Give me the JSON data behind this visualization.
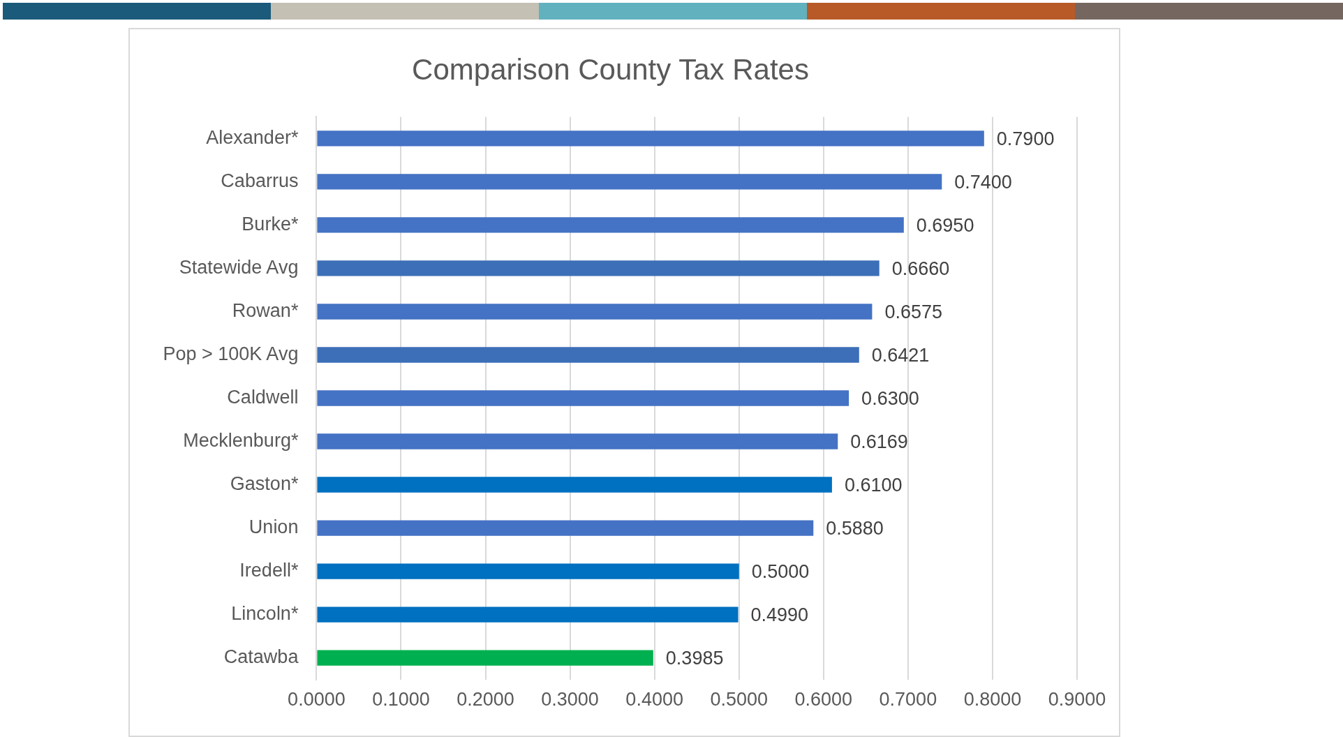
{
  "chart_data": {
    "type": "bar",
    "orientation": "horizontal",
    "title": "Comparison County Tax Rates",
    "categories": [
      "Alexander*",
      "Cabarrus",
      "Burke*",
      "Statewide Avg",
      "Rowan*",
      "Pop > 100K Avg",
      "Caldwell",
      "Mecklenburg*",
      "Gaston*",
      "Union",
      "Iredell*",
      "Lincoln*",
      "Catawba"
    ],
    "values": [
      0.79,
      0.74,
      0.695,
      0.666,
      0.6575,
      0.6421,
      0.63,
      0.6169,
      0.61,
      0.588,
      0.5,
      0.499,
      0.3985
    ],
    "value_labels": [
      "0.7900",
      "0.7400",
      "0.6950",
      "0.6660",
      "0.6575",
      "0.6421",
      "0.6300",
      "0.6169",
      "0.6100",
      "0.5880",
      "0.5000",
      "0.4990",
      "0.3985"
    ],
    "colors": [
      "#4472c4",
      "#4472c4",
      "#4472c4",
      "#3d6fb8",
      "#4472c4",
      "#3d6fb8",
      "#4472c4",
      "#4472c4",
      "#0070c0",
      "#4472c4",
      "#0070c0",
      "#0070c0",
      "#00b050"
    ],
    "xlim": [
      0,
      0.9
    ],
    "xticks": [
      {
        "value": 0,
        "label": "0.0000"
      },
      {
        "value": 0.1,
        "label": "0.1000"
      },
      {
        "value": 0.2,
        "label": "0.2000"
      },
      {
        "value": 0.3,
        "label": "0.3000"
      },
      {
        "value": 0.4,
        "label": "0.4000"
      },
      {
        "value": 0.5,
        "label": "0.5000"
      },
      {
        "value": 0.6,
        "label": "0.6000"
      },
      {
        "value": 0.7,
        "label": "0.7000"
      },
      {
        "value": 0.8,
        "label": "0.8000"
      },
      {
        "value": 0.9,
        "label": "0.9000"
      }
    ],
    "grid": "x",
    "legend": false
  }
}
